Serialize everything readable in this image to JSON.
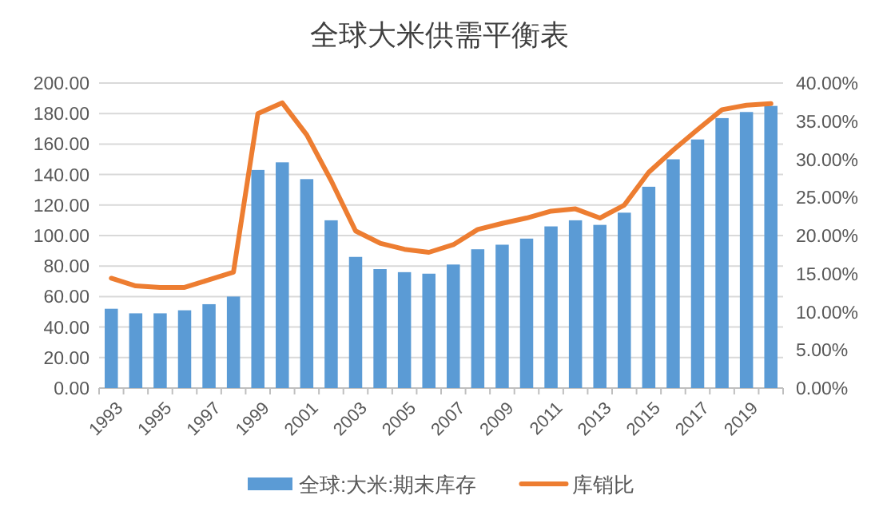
{
  "chart_data": {
    "type": "bar",
    "title": "全球大米供需平衡表",
    "categories": [
      "1993",
      null,
      "1995",
      null,
      "1997",
      null,
      "1999",
      null,
      "2001",
      null,
      "2003",
      null,
      "2005",
      null,
      "2007",
      null,
      "2009",
      null,
      "2011",
      null,
      "2013",
      null,
      "2015",
      null,
      "2017",
      null,
      "2019",
      null
    ],
    "series": [
      {
        "name": "全球:大米:期末库存",
        "color": "#5b9bd5",
        "values": [
          52,
          49,
          49,
          51,
          55,
          60,
          143,
          148,
          137,
          110,
          86,
          78,
          76,
          75,
          81,
          91,
          94,
          98,
          106,
          110,
          107,
          115,
          132,
          150,
          163,
          177,
          181,
          185
        ]
      },
      {
        "name": "库销比",
        "type": "line",
        "axis": "y2",
        "color": "#ed7d31",
        "values": [
          14.4,
          13.4,
          13.2,
          13.2,
          14.2,
          15.2,
          36.0,
          37.4,
          33.2,
          27.2,
          20.6,
          19.0,
          18.2,
          17.8,
          18.8,
          20.8,
          21.6,
          22.3,
          23.2,
          23.5,
          22.3,
          24.0,
          28.3,
          31.2,
          33.9,
          36.5,
          37.1,
          37.3
        ]
      }
    ],
    "ylim": [
      0,
      200
    ],
    "yticks": [
      {
        "value": 0,
        "label": "0.00"
      },
      {
        "value": 20,
        "label": "20.00"
      },
      {
        "value": 40,
        "label": "40.00"
      },
      {
        "value": 60,
        "label": "60.00"
      },
      {
        "value": 80,
        "label": "80.00"
      },
      {
        "value": 100,
        "label": "100.00"
      },
      {
        "value": 120,
        "label": "120.00"
      },
      {
        "value": 140,
        "label": "140.00"
      },
      {
        "value": 160,
        "label": "160.00"
      },
      {
        "value": 180,
        "label": "180.00"
      },
      {
        "value": 200,
        "label": "200.00"
      }
    ],
    "y2lim": [
      0,
      40
    ],
    "y2ticks": [
      {
        "value": 0,
        "label": "0.00%"
      },
      {
        "value": 5,
        "label": "5.00%"
      },
      {
        "value": 10,
        "label": "10.00%"
      },
      {
        "value": 15,
        "label": "15.00%"
      },
      {
        "value": 20,
        "label": "20.00%"
      },
      {
        "value": 25,
        "label": "25.00%"
      },
      {
        "value": 30,
        "label": "30.00%"
      },
      {
        "value": 35,
        "label": "35.00%"
      },
      {
        "value": 40,
        "label": "40.00%"
      }
    ],
    "grid": "y",
    "legend": "bottom",
    "marker": "none",
    "line_style": "solid"
  }
}
